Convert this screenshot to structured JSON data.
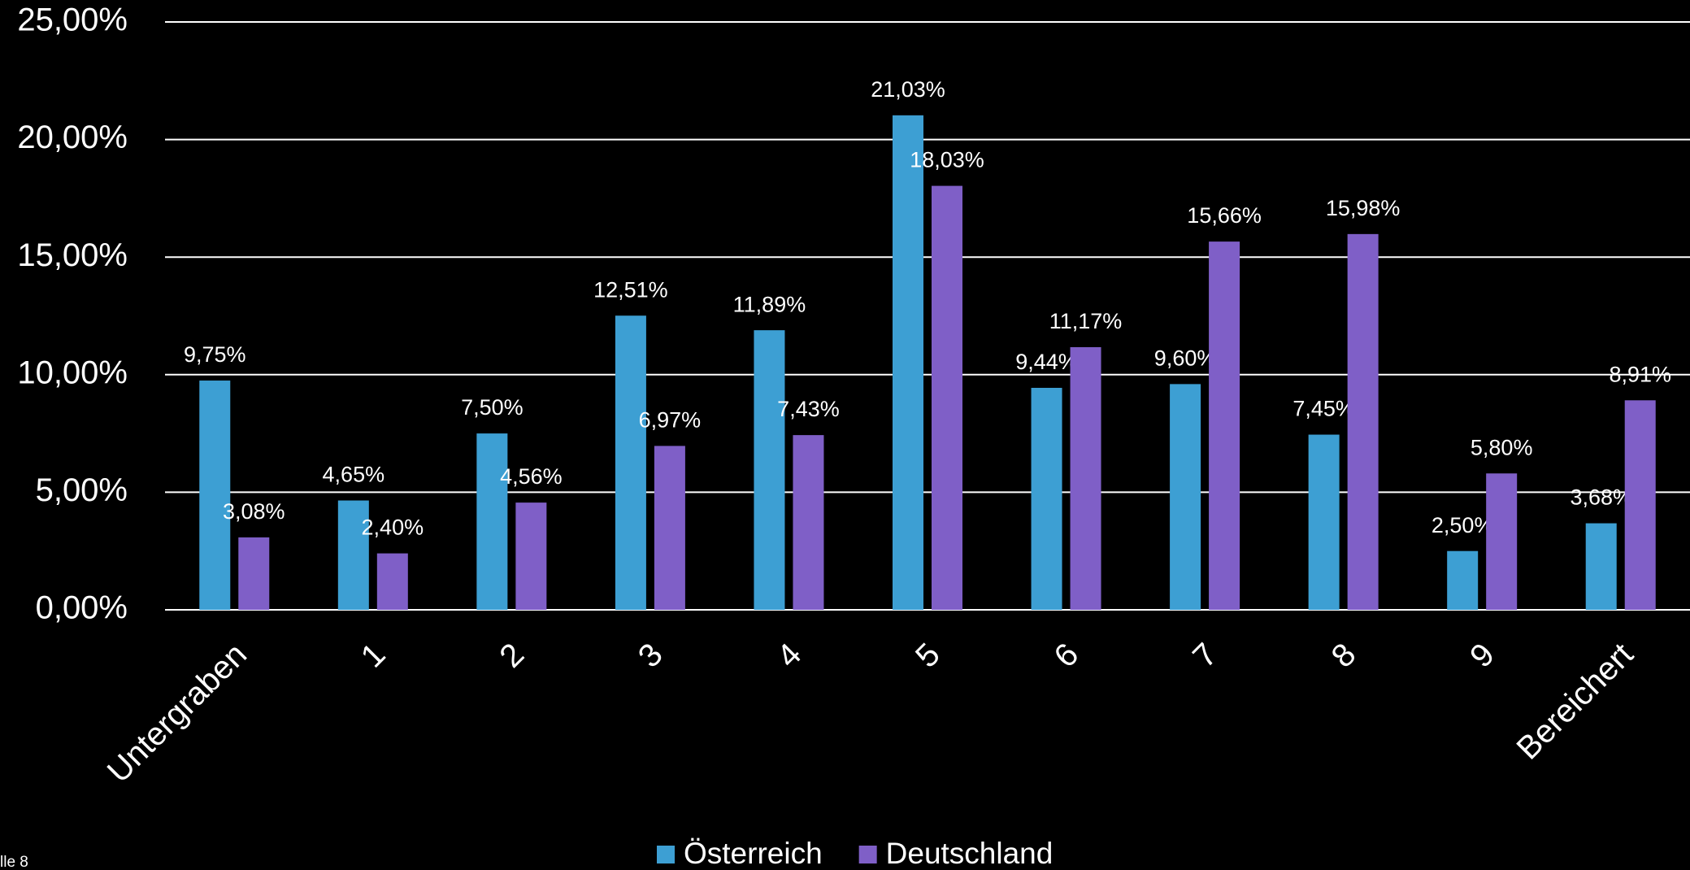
{
  "chart_data": {
    "type": "bar",
    "categories": [
      "Untergraben",
      "1",
      "2",
      "3",
      "4",
      "5",
      "6",
      "7",
      "8",
      "9",
      "Bereichert"
    ],
    "series": [
      {
        "name": "Österreich",
        "color": "#3d9fd3",
        "values": [
          9.75,
          4.65,
          7.5,
          12.51,
          11.89,
          21.03,
          9.44,
          9.6,
          7.45,
          2.5,
          3.68
        ],
        "value_labels": [
          "9,75%",
          "4,65%",
          "7,50%",
          "12,51%",
          "11,89%",
          "21,03%",
          "9,44%",
          "9,60%",
          "7,45%",
          "2,50%",
          "3,68%"
        ]
      },
      {
        "name": "Deutschland",
        "color": "#7f5fc7",
        "values": [
          3.08,
          2.4,
          4.56,
          6.97,
          7.43,
          18.03,
          11.17,
          15.66,
          15.98,
          5.8,
          8.91
        ],
        "value_labels": [
          "3,08%",
          "2,40%",
          "4,56%",
          "6,97%",
          "7,43%",
          "18,03%",
          "11,17%",
          "15,66%",
          "15,98%",
          "5,80%",
          "8,91%"
        ]
      }
    ],
    "ylim": [
      0,
      25
    ],
    "yticks": [
      {
        "value": 0,
        "label": "0,00%"
      },
      {
        "value": 5,
        "label": "5,00%"
      },
      {
        "value": 10,
        "label": "10,00%"
      },
      {
        "value": 15,
        "label": "15,00%"
      },
      {
        "value": 20,
        "label": "20,00%"
      },
      {
        "value": 25,
        "label": "25,00%"
      }
    ],
    "grid": true,
    "legend": "bottom",
    "footnote": "lle 8"
  }
}
